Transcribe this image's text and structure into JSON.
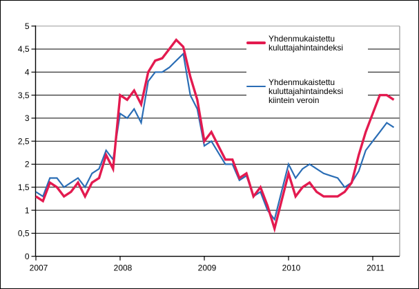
{
  "chart_data": {
    "type": "line",
    "title": "",
    "x_start_label": "2007",
    "x_tick_labels": [
      "2007",
      "2008",
      "2009",
      "2010",
      "2011"
    ],
    "y_tick_labels": [
      "0",
      "0,5",
      "1",
      "1,5",
      "2",
      "2,5",
      "3",
      "3,5",
      "4",
      "4,5",
      "5"
    ],
    "ylim": [
      0,
      5
    ],
    "grid": "horizontal",
    "legend_position": "upper-right-inside",
    "months_per_year": 12,
    "series": [
      {
        "name": "Yhdenmukaistettu kuluttajahintaindeksi",
        "legend_lines": [
          "Yhdenmukaistettu",
          "kuluttajahintaindeksi"
        ],
        "color": "#e31a4f",
        "stroke_width": 3.4,
        "values": [
          1.3,
          1.2,
          1.6,
          1.5,
          1.3,
          1.4,
          1.6,
          1.3,
          1.6,
          1.7,
          2.2,
          1.9,
          3.5,
          3.4,
          3.6,
          3.3,
          4.0,
          4.25,
          4.3,
          4.5,
          4.7,
          4.55,
          3.9,
          3.4,
          2.5,
          2.7,
          2.4,
          2.1,
          2.1,
          1.7,
          1.8,
          1.3,
          1.5,
          1.1,
          0.6,
          1.2,
          1.8,
          1.3,
          1.5,
          1.6,
          1.4,
          1.3,
          1.3,
          1.3,
          1.4,
          1.6,
          2.2,
          2.7,
          3.1,
          3.5,
          3.5,
          3.4
        ]
      },
      {
        "name": "Yhdenmukaistettu kuluttajahintaindeksi kiintein veroin",
        "legend_lines": [
          "Yhdenmukaistettu",
          "kuluttajahintaindeksi",
          "kiintein veroin"
        ],
        "color": "#2a6db5",
        "stroke_width": 2.2,
        "values": [
          1.4,
          1.3,
          1.7,
          1.7,
          1.5,
          1.6,
          1.7,
          1.5,
          1.8,
          1.9,
          2.3,
          2.1,
          3.1,
          3.0,
          3.2,
          2.9,
          3.8,
          4.0,
          4.0,
          4.1,
          4.25,
          4.4,
          3.5,
          3.2,
          2.4,
          2.5,
          2.25,
          2.0,
          2.0,
          1.65,
          1.75,
          1.3,
          1.4,
          1.0,
          0.8,
          1.4,
          2.0,
          1.7,
          1.9,
          2.0,
          1.9,
          1.8,
          1.75,
          1.7,
          1.5,
          1.6,
          1.85,
          2.3,
          2.5,
          2.7,
          2.9,
          2.8
        ]
      }
    ],
    "colors": {
      "axis": "#000000",
      "gridline": "#000000",
      "top_border": "#999999",
      "right_border": "#808080",
      "background": "#ffffff"
    }
  }
}
